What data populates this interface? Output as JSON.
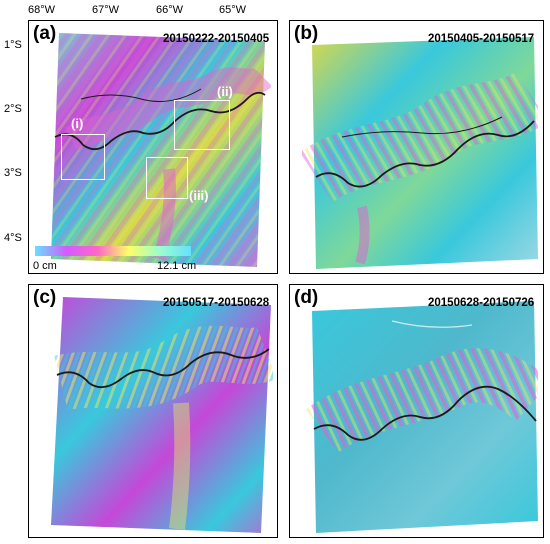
{
  "axis": {
    "lon_ticks": [
      "68°W",
      "67°W",
      "66°W",
      "65°W"
    ],
    "lat_ticks": [
      "1°S",
      "2°S",
      "3°S",
      "4°S"
    ]
  },
  "panels": [
    {
      "label": "(a)",
      "dates": "20150222-20150405"
    },
    {
      "label": "(b)",
      "dates": "20150405-20150517"
    },
    {
      "label": "(c)",
      "dates": "20150517-20150628"
    },
    {
      "label": "(d)",
      "dates": "20150628-20150726"
    }
  ],
  "subregions": [
    "(i)",
    "(ii)",
    "(iii)"
  ],
  "colorbar": {
    "min_label": "0 cm",
    "max_label": "12.1 cm",
    "colors": [
      "#66e0ff",
      "#d25cff",
      "#ff66c8",
      "#ffff66",
      "#99ffcc",
      "#66e0ff"
    ]
  },
  "palette": {
    "cyan": "#39c8dc",
    "magenta": "#c448d8",
    "yellow": "#d8d84a",
    "green": "#5ec88a",
    "river": "#1a1a1a"
  }
}
